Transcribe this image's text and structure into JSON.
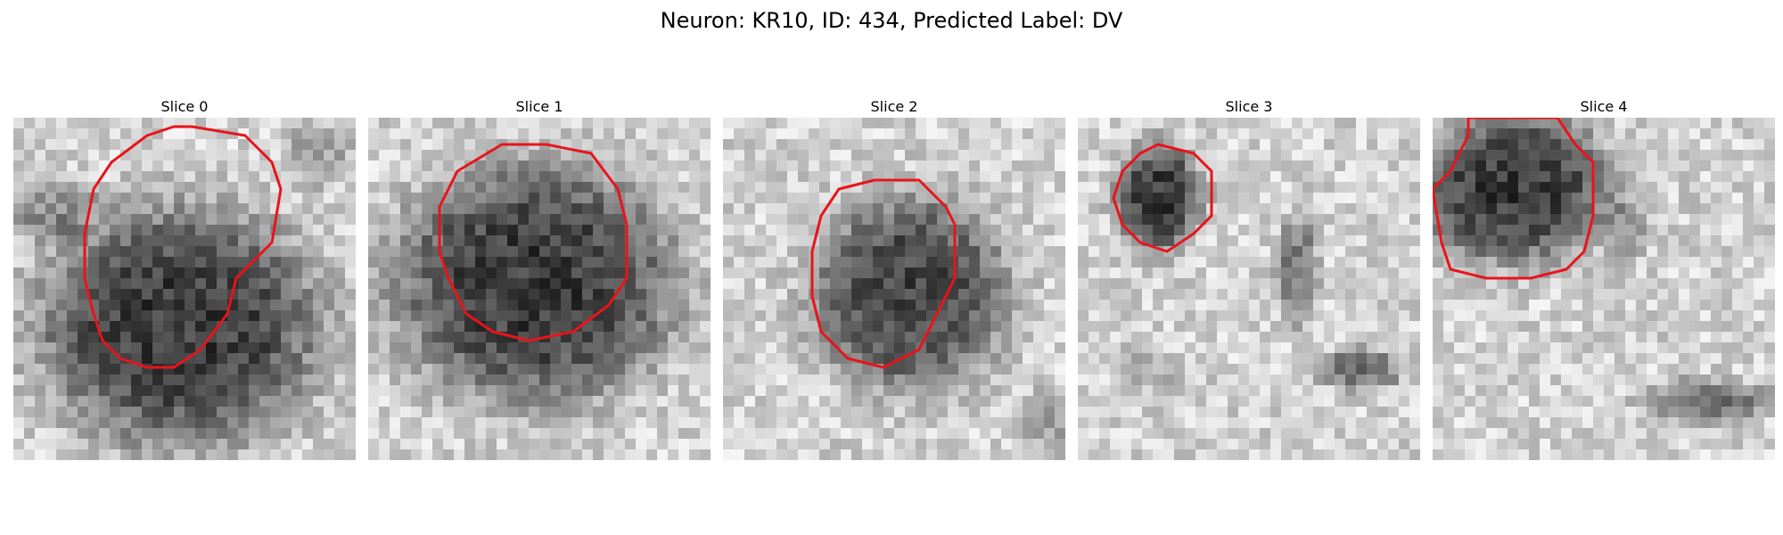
{
  "figure": {
    "title": "Neuron: KR10, ID: 434, Predicted Label: DV"
  },
  "slices": [
    {
      "label": "Slice 0"
    },
    {
      "label": "Slice 1"
    },
    {
      "label": "Slice 2"
    },
    {
      "label": "Slice 3"
    },
    {
      "label": "Slice 4"
    }
  ],
  "colors": {
    "contour": "#e8141b",
    "background": "#ffffff",
    "image_colormap": "grayscale"
  }
}
